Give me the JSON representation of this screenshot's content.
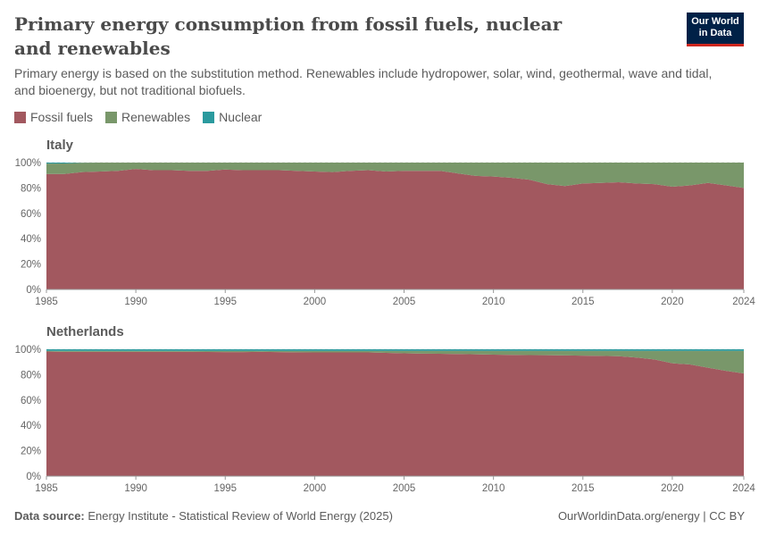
{
  "title": "Primary energy consumption from fossil fuels, nuclear and renewables",
  "subtitle": "Primary energy is based on the substitution method. Renewables include hydropower, solar, wind, geothermal, wave and tidal, and bioenergy, but not traditional biofuels.",
  "logo": "Our World in Data",
  "footer": {
    "source_label": "Data source:",
    "source": "Energy Institute - Statistical Review of World Energy (2025)",
    "url": "OurWorldinData.org/energy | CC BY"
  },
  "legend": [
    {
      "name": "Fossil fuels",
      "color": "#a2585f"
    },
    {
      "name": "Renewables",
      "color": "#79976a"
    },
    {
      "name": "Nuclear",
      "color": "#2a9a9e"
    }
  ],
  "chart_data": [
    {
      "type": "area",
      "stacked": true,
      "title": "Italy",
      "ylim": [
        0,
        100
      ],
      "yticks": [
        "0%",
        "20%",
        "40%",
        "60%",
        "80%",
        "100%"
      ],
      "xticks": [
        "1985",
        "1990",
        "1995",
        "2000",
        "2005",
        "2010",
        "2015",
        "2020",
        "2024"
      ],
      "x": [
        1985,
        1986,
        1987,
        1988,
        1989,
        1990,
        1991,
        1992,
        1993,
        1994,
        1995,
        1996,
        1997,
        1998,
        1999,
        2000,
        2001,
        2002,
        2003,
        2004,
        2005,
        2006,
        2007,
        2008,
        2009,
        2010,
        2011,
        2012,
        2013,
        2014,
        2015,
        2016,
        2017,
        2018,
        2019,
        2020,
        2021,
        2022,
        2023,
        2024
      ],
      "series": [
        {
          "name": "Fossil fuels",
          "values": [
            91,
            91,
            92.5,
            93,
            93.5,
            95,
            94,
            94,
            93.5,
            93.5,
            94.5,
            94,
            94,
            94,
            93.5,
            93,
            92.5,
            93.5,
            94,
            93,
            93.5,
            93.5,
            93.5,
            91.5,
            89.5,
            89,
            88,
            86.5,
            83,
            81.5,
            83.5,
            84,
            84.5,
            83.5,
            83,
            81,
            82,
            84,
            82,
            80
          ]
        },
        {
          "name": "Renewables",
          "values": [
            8.2,
            8.3,
            7.4,
            7,
            6.5,
            5,
            6,
            6,
            6.5,
            6.5,
            5.5,
            6,
            6,
            6,
            6.5,
            7,
            7.5,
            6.5,
            6,
            7,
            6.5,
            6.5,
            6.5,
            8.5,
            10.5,
            11,
            12,
            13.5,
            17,
            18.5,
            16.5,
            16,
            15.5,
            16.5,
            17,
            19,
            18,
            16,
            18,
            20
          ]
        },
        {
          "name": "Nuclear",
          "values": [
            0.8,
            0.7,
            0.1,
            0,
            0,
            0,
            0,
            0,
            0,
            0,
            0,
            0,
            0,
            0,
            0,
            0,
            0,
            0,
            0,
            0,
            0,
            0,
            0,
            0,
            0,
            0,
            0,
            0,
            0,
            0,
            0,
            0,
            0,
            0,
            0,
            0,
            0,
            0,
            0,
            0
          ]
        }
      ]
    },
    {
      "type": "area",
      "stacked": true,
      "title": "Netherlands",
      "ylim": [
        0,
        100
      ],
      "yticks": [
        "0%",
        "20%",
        "40%",
        "60%",
        "80%",
        "100%"
      ],
      "xticks": [
        "1985",
        "1990",
        "1995",
        "2000",
        "2005",
        "2010",
        "2015",
        "2020",
        "2024"
      ],
      "x": [
        1985,
        1986,
        1987,
        1988,
        1989,
        1990,
        1991,
        1992,
        1993,
        1994,
        1995,
        1996,
        1997,
        1998,
        1999,
        2000,
        2001,
        2002,
        2003,
        2004,
        2005,
        2006,
        2007,
        2008,
        2009,
        2010,
        2011,
        2012,
        2013,
        2014,
        2015,
        2016,
        2017,
        2018,
        2019,
        2020,
        2021,
        2022,
        2023,
        2024
      ],
      "series": [
        {
          "name": "Fossil fuels",
          "values": [
            98.2,
            98,
            98,
            98,
            98,
            98,
            98,
            98,
            98,
            97.9,
            97.8,
            97.8,
            98,
            97.8,
            97.6,
            97.5,
            97.5,
            97.5,
            97.5,
            97.2,
            96.8,
            96.6,
            96.5,
            96.3,
            96,
            95.8,
            95.6,
            95.4,
            95.3,
            95.2,
            95,
            94.8,
            94.5,
            93.5,
            92,
            89,
            88,
            85.5,
            83,
            81
          ]
        },
        {
          "name": "Renewables",
          "values": [
            0.6,
            0.8,
            0.8,
            0.8,
            0.8,
            0.8,
            0.8,
            0.8,
            0.8,
            0.9,
            1,
            1,
            0.8,
            1,
            1.2,
            1.3,
            1.3,
            1.3,
            1.3,
            1.6,
            2,
            2.2,
            2.3,
            2.5,
            2.8,
            3,
            3.2,
            3.4,
            3.5,
            3.6,
            3.8,
            4,
            4.3,
            5.3,
            6.8,
            9.8,
            10.8,
            13.3,
            15.8,
            17.8
          ]
        },
        {
          "name": "Nuclear",
          "values": [
            1.2,
            1.2,
            1.2,
            1.2,
            1.2,
            1.2,
            1.2,
            1.2,
            1.2,
            1.2,
            1.2,
            1.2,
            1.2,
            1.2,
            1.2,
            1.2,
            1.2,
            1.2,
            1.2,
            1.2,
            1.2,
            1.2,
            1.2,
            1.2,
            1.2,
            1.2,
            1.2,
            1.2,
            1.2,
            1.2,
            1.2,
            1.2,
            1.2,
            1.2,
            1.2,
            1.2,
            1.2,
            1.2,
            1.2,
            1.2
          ]
        }
      ]
    }
  ]
}
